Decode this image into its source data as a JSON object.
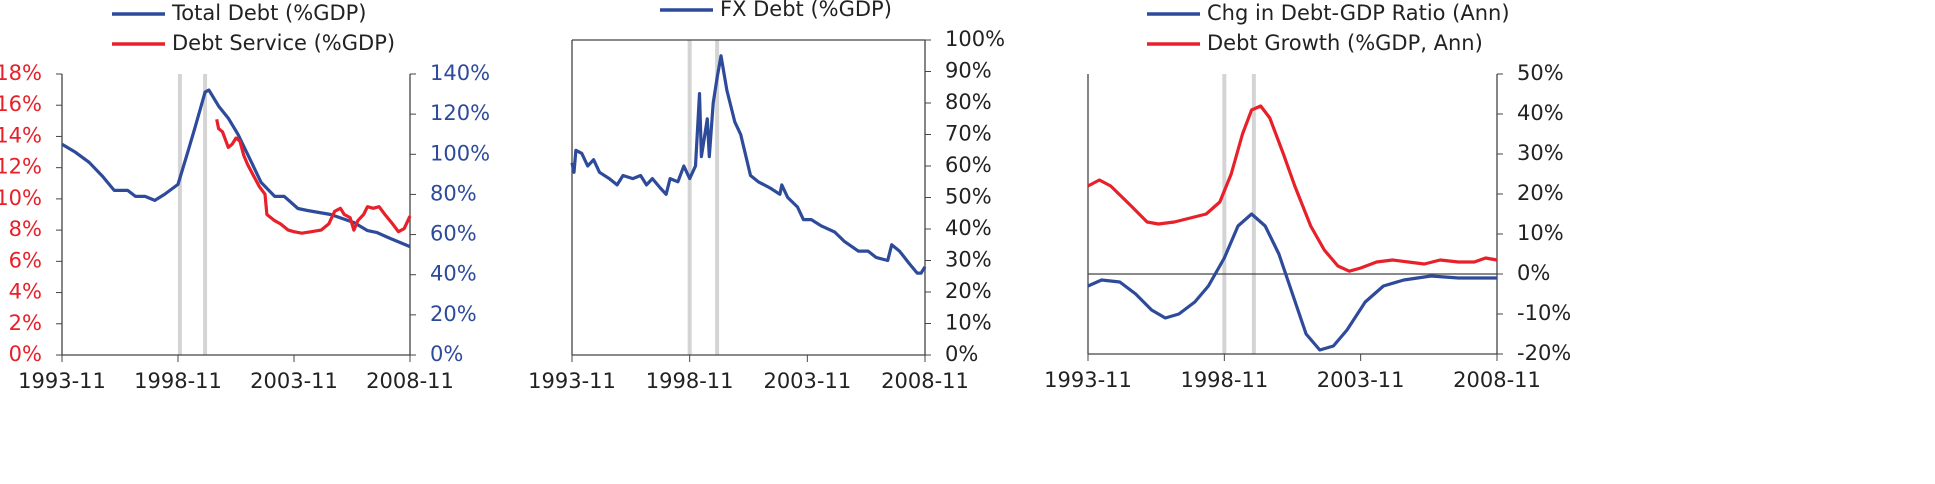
{
  "chart_data": [
    {
      "type": "line",
      "xlim": [
        "1993-11",
        "2008-11"
      ],
      "xticks": [
        "1993-11",
        "1998-11",
        "2003-11",
        "2008-11"
      ],
      "ylim": [
        0,
        18
      ],
      "yticks": [
        {
          "value": 0,
          "label": "0%"
        },
        {
          "value": 2,
          "label": "2%"
        },
        {
          "value": 4,
          "label": "4%"
        },
        {
          "value": 6,
          "label": "6%"
        },
        {
          "value": 8,
          "label": "8%"
        },
        {
          "value": 10,
          "label": "10%"
        },
        {
          "value": 12,
          "label": "12%"
        },
        {
          "value": 14,
          "label": "14%"
        },
        {
          "value": 16,
          "label": "16%"
        },
        {
          "value": 18,
          "label": "18%"
        }
      ],
      "y2lim": [
        0,
        140
      ],
      "y2ticks": [
        {
          "value": 0,
          "label": "0%"
        },
        {
          "value": 20,
          "label": "20%"
        },
        {
          "value": 40,
          "label": "40%"
        },
        {
          "value": 60,
          "label": "60%"
        },
        {
          "value": 80,
          "label": "80%"
        },
        {
          "value": 100,
          "label": "100%"
        },
        {
          "value": 120,
          "label": "120%"
        },
        {
          "value": 140,
          "label": "140%"
        }
      ],
      "axis_labels_colored": true,
      "frame": "sides",
      "vlines": [
        "1998-12",
        "2000-01"
      ],
      "series": [
        {
          "name": "Total Debt (%GDP)",
          "color": "#2e4b9b",
          "axis": "y2",
          "x": [
            "1993-11",
            "1994-06",
            "1995-01",
            "1995-08",
            "1996-02",
            "1996-09",
            "1997-01",
            "1997-06",
            "1997-11",
            "1998-04",
            "1998-11",
            "1999-04",
            "1999-08",
            "2000-01",
            "2000-03",
            "2000-08",
            "2001-01",
            "2001-06",
            "2002-01",
            "2002-06",
            "2003-01",
            "2003-06",
            "2004-01",
            "2004-06",
            "2005-06",
            "2006-06",
            "2007-01",
            "2007-06",
            "2008-01",
            "2008-11"
          ],
          "values": [
            105,
            101,
            96,
            89,
            82,
            82,
            79,
            79,
            77,
            80,
            85,
            101,
            114,
            131,
            132,
            124,
            118,
            110,
            96,
            86,
            79,
            79,
            73,
            72,
            70,
            66,
            62,
            61,
            58,
            54
          ]
        },
        {
          "name": "Debt Service (%GDP)",
          "color": "#e8202a",
          "axis": "y",
          "x": [
            "2000-07",
            "2000-08",
            "2000-10",
            "2001-01",
            "2001-03",
            "2001-05",
            "2001-07",
            "2001-09",
            "2001-11",
            "2002-02",
            "2002-05",
            "2002-08",
            "2002-09",
            "2002-10",
            "2003-01",
            "2003-04",
            "2003-08",
            "2003-11",
            "2004-03",
            "2004-08",
            "2005-01",
            "2005-05",
            "2005-08",
            "2005-11",
            "2006-01",
            "2006-04",
            "2006-06",
            "2006-08",
            "2006-11",
            "2007-01",
            "2007-04",
            "2007-07",
            "2007-10",
            "2008-02",
            "2008-05",
            "2008-08",
            "2008-11"
          ],
          "values": [
            15.1,
            14.5,
            14.3,
            13.3,
            13.5,
            13.9,
            13.7,
            12.8,
            12.2,
            11.5,
            10.8,
            10.3,
            9.0,
            8.9,
            8.6,
            8.4,
            8.0,
            7.9,
            7.8,
            7.9,
            8.0,
            8.4,
            9.2,
            9.4,
            9.0,
            8.8,
            8.0,
            8.6,
            9.0,
            9.5,
            9.4,
            9.5,
            9.0,
            8.4,
            7.9,
            8.1,
            8.9
          ]
        }
      ]
    },
    {
      "type": "line",
      "xlim": [
        "1993-11",
        "2008-11"
      ],
      "xticks": [
        "1993-11",
        "1998-11",
        "2003-11",
        "2008-11"
      ],
      "y2lim": [
        0,
        100
      ],
      "y2ticks": [
        {
          "value": 0,
          "label": "0%"
        },
        {
          "value": 10,
          "label": "10%"
        },
        {
          "value": 20,
          "label": "20%"
        },
        {
          "value": 30,
          "label": "30%"
        },
        {
          "value": 40,
          "label": "40%"
        },
        {
          "value": 50,
          "label": "50%"
        },
        {
          "value": 60,
          "label": "60%"
        },
        {
          "value": 70,
          "label": "70%"
        },
        {
          "value": 80,
          "label": "80%"
        },
        {
          "value": 90,
          "label": "90%"
        },
        {
          "value": 100,
          "label": "100%"
        }
      ],
      "frame": "box",
      "vlines": [
        "1998-11",
        "2000-01"
      ],
      "series": [
        {
          "name": "FX Debt (%GDP)",
          "color": "#2e4b9b",
          "axis": "y2",
          "x": [
            "1993-11",
            "1993-12",
            "1994-01",
            "1994-04",
            "1994-07",
            "1994-10",
            "1995-01",
            "1995-06",
            "1995-10",
            "1996-01",
            "1996-06",
            "1996-10",
            "1997-01",
            "1997-04",
            "1997-08",
            "1997-11",
            "1998-01",
            "1998-05",
            "1998-08",
            "1998-11",
            "1999-02",
            "1999-04",
            "1999-05",
            "1999-08",
            "1999-09",
            "1999-11",
            "2000-01",
            "2000-03",
            "2000-06",
            "2000-10",
            "2001-01",
            "2001-06",
            "2001-10",
            "2002-04",
            "2002-09",
            "2002-10",
            "2003-01",
            "2003-06",
            "2003-09",
            "2004-01",
            "2004-06",
            "2005-01",
            "2005-06",
            "2006-01",
            "2006-06",
            "2006-10",
            "2007-04",
            "2007-06",
            "2007-10",
            "2008-03",
            "2008-07",
            "2008-09",
            "2008-11"
          ],
          "values": [
            61,
            58,
            65,
            64,
            60,
            62,
            58,
            56,
            54,
            57,
            56,
            57,
            54,
            56,
            53,
            51,
            56,
            55,
            60,
            56,
            60,
            83,
            63,
            75,
            63,
            80,
            88,
            95,
            84,
            74,
            70,
            57,
            55,
            53,
            51,
            54,
            50,
            47,
            43,
            43,
            41,
            39,
            36,
            33,
            33,
            31,
            30,
            35,
            33,
            29,
            26,
            26,
            28
          ]
        }
      ]
    },
    {
      "type": "line",
      "xlim": [
        "1993-11",
        "2008-11"
      ],
      "xticks": [
        "1993-11",
        "1998-11",
        "2003-11",
        "2008-11"
      ],
      "y2lim": [
        -20,
        50
      ],
      "y2ticks": [
        {
          "value": -20,
          "label": "-20%"
        },
        {
          "value": -10,
          "label": "-10%"
        },
        {
          "value": 0,
          "label": "0%"
        },
        {
          "value": 10,
          "label": "10%"
        },
        {
          "value": 20,
          "label": "20%"
        },
        {
          "value": 30,
          "label": "30%"
        },
        {
          "value": 40,
          "label": "40%"
        },
        {
          "value": 50,
          "label": "50%"
        }
      ],
      "frame": "sides",
      "zero_line": true,
      "vlines": [
        "1998-11",
        "1999-12"
      ],
      "series": [
        {
          "name": "Chg in Debt-GDP Ratio (Ann)",
          "color": "#2e4b9b",
          "axis": "y2",
          "x": [
            "1993-11",
            "1994-05",
            "1995-01",
            "1995-08",
            "1996-03",
            "1996-09",
            "1997-03",
            "1997-10",
            "1998-04",
            "1998-11",
            "1999-05",
            "1999-11",
            "2000-05",
            "2000-11",
            "2001-05",
            "2001-11",
            "2002-05",
            "2002-11",
            "2003-05",
            "2004-01",
            "2004-09",
            "2005-06",
            "2006-06",
            "2007-06",
            "2008-11"
          ],
          "values": [
            -3,
            -1.5,
            -2,
            -5,
            -9,
            -11,
            -10,
            -7,
            -3,
            4,
            12,
            15,
            12,
            5,
            -5,
            -15,
            -19,
            -18,
            -14,
            -7,
            -3,
            -1.5,
            -0.5,
            -1,
            -1
          ]
        },
        {
          "name": "Debt Growth (%GDP, Ann)",
          "color": "#e8202a",
          "axis": "y2",
          "x": [
            "1993-11",
            "1994-04",
            "1994-09",
            "1995-06",
            "1996-01",
            "1996-06",
            "1997-01",
            "1997-08",
            "1998-03",
            "1998-09",
            "1999-02",
            "1999-07",
            "1999-11",
            "2000-03",
            "2000-07",
            "2001-01",
            "2001-06",
            "2002-01",
            "2002-07",
            "2003-01",
            "2003-06",
            "2003-11",
            "2004-06",
            "2005-01",
            "2005-08",
            "2006-03",
            "2006-10",
            "2007-06",
            "2008-01",
            "2008-06",
            "2008-11"
          ],
          "values": [
            22,
            23.5,
            22,
            17,
            13,
            12.5,
            13,
            14,
            15,
            18,
            25,
            35,
            41,
            42,
            39,
            30,
            22,
            12,
            6,
            2,
            0.7,
            1.5,
            3,
            3.5,
            3,
            2.5,
            3.5,
            3,
            3,
            4,
            3.5
          ]
        }
      ]
    }
  ]
}
